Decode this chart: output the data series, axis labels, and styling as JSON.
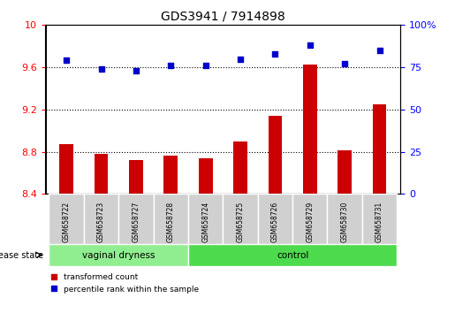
{
  "title": "GDS3941 / 7914898",
  "samples": [
    "GSM658722",
    "GSM658723",
    "GSM658727",
    "GSM658728",
    "GSM658724",
    "GSM658725",
    "GSM658726",
    "GSM658729",
    "GSM658730",
    "GSM658731"
  ],
  "red_values": [
    8.87,
    8.78,
    8.72,
    8.76,
    8.74,
    8.9,
    9.14,
    9.63,
    8.81,
    9.25
  ],
  "blue_values": [
    79,
    74,
    73,
    76,
    76,
    80,
    83,
    88,
    77,
    85
  ],
  "ylim_left": [
    8.4,
    10.0
  ],
  "ylim_right": [
    0,
    100
  ],
  "yticks_left": [
    8.4,
    8.8,
    9.2,
    9.6,
    10.0
  ],
  "yticks_right": [
    0,
    25,
    50,
    75,
    100
  ],
  "ytick_labels_left": [
    "8.4",
    "8.8",
    "9.2",
    "9.6",
    "10"
  ],
  "ytick_labels_right": [
    "0",
    "25",
    "50",
    "75",
    "100%"
  ],
  "group_labels": [
    "vaginal dryness",
    "control"
  ],
  "group_ranges": [
    [
      0,
      3
    ],
    [
      4,
      9
    ]
  ],
  "group_colors": [
    "#90ee90",
    "#4ddb4d"
  ],
  "bar_color": "#cc0000",
  "dot_color": "#0000cc",
  "bg_color": "#f0f0f0",
  "legend_red_label": "transformed count",
  "legend_blue_label": "percentile rank within the sample",
  "disease_state_label": "disease state",
  "dotted_line_color": "#000000",
  "bar_bottom": 8.4,
  "bar_width": 0.5
}
